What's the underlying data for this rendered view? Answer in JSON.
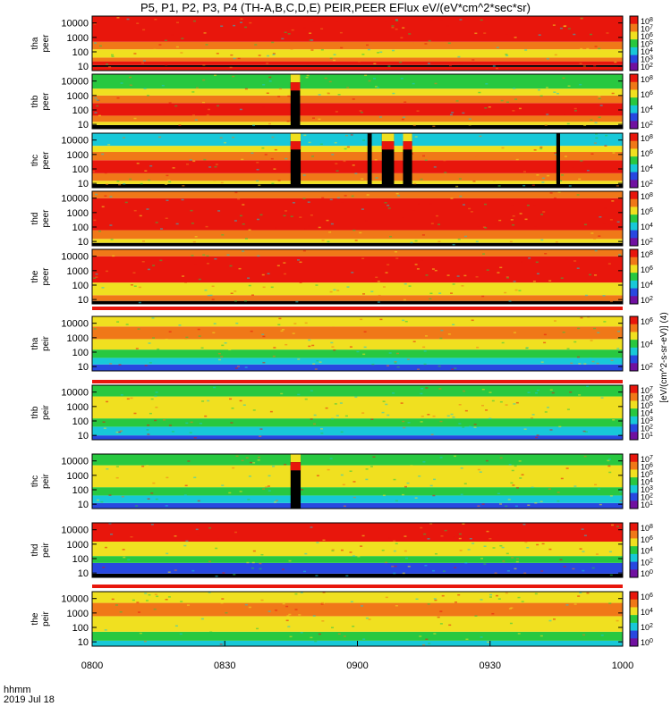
{
  "title": "P5, P1, P2, P3, P4 (TH-A,B,C,D,E) PEIR,PEER EFlux eV/(eV*cm^2*sec*sr)",
  "footer": {
    "label": "hhmm",
    "date": "2019 Jul 18"
  },
  "colorbar_axis_label": "[eV/(cm^2-s-sr-eV)] (4)",
  "x_ticks": [
    "0800",
    "0830",
    "0900",
    "0930",
    "1000"
  ],
  "colors": {
    "red": "#e8160c",
    "orange": "#f07818",
    "yellow": "#f0e020",
    "green": "#28c840",
    "cyan": "#18c8d8",
    "blue": "#2848e0",
    "black": "#000000"
  },
  "chart_data": [
    {
      "type": "heatmap",
      "probe": "tha",
      "label_top": "tha",
      "label_bottom": "peer",
      "yscale": "log",
      "ylim": [
        5,
        30000
      ],
      "y_ticks": [
        "10000",
        "1000",
        "100",
        "10"
      ],
      "cbar_ticks": [
        "10^8",
        "10^7",
        "10^6",
        "10^5",
        "10^4",
        "10^3",
        "10^2"
      ],
      "cbar_range": [
        100,
        100000000
      ],
      "x_range": [
        "0800",
        "1000"
      ],
      "bands": [
        {
          "from": 5,
          "to": 9,
          "level": "red"
        },
        {
          "from": 9,
          "to": 12,
          "level": "black"
        },
        {
          "from": 12,
          "to": 22,
          "level": "red"
        },
        {
          "from": 22,
          "to": 40,
          "level": "orange"
        },
        {
          "from": 40,
          "to": 150,
          "level": "yellow"
        },
        {
          "from": 150,
          "to": 500,
          "level": "orange"
        },
        {
          "from": 500,
          "to": 30000,
          "level": "red"
        }
      ],
      "gaps": []
    },
    {
      "type": "heatmap",
      "probe": "thb",
      "label_top": "thb",
      "label_bottom": "peer",
      "yscale": "log",
      "ylim": [
        5,
        30000
      ],
      "y_ticks": [
        "10000",
        "1000",
        "100",
        "10"
      ],
      "cbar_ticks": [
        "10^8",
        "10^6",
        "10^4",
        "10^2"
      ],
      "cbar_range": [
        100,
        100000000
      ],
      "x_range": [
        "0800",
        "1000"
      ],
      "bands": [
        {
          "from": 5,
          "to": 9,
          "level": "black"
        },
        {
          "from": 9,
          "to": 15,
          "level": "yellow"
        },
        {
          "from": 15,
          "to": 40,
          "level": "orange"
        },
        {
          "from": 40,
          "to": 300,
          "level": "red"
        },
        {
          "from": 300,
          "to": 1000,
          "level": "orange"
        },
        {
          "from": 1000,
          "to": 3000,
          "level": "yellow"
        },
        {
          "from": 3000,
          "to": 30000,
          "level": "green"
        }
      ],
      "gaps": [
        {
          "start": 0.374,
          "end": 0.392
        }
      ]
    },
    {
      "type": "heatmap",
      "probe": "thc",
      "label_top": "thc",
      "label_bottom": "peer",
      "yscale": "log",
      "ylim": [
        5,
        30000
      ],
      "y_ticks": [
        "10000",
        "1000",
        "100",
        "10"
      ],
      "cbar_ticks": [
        "10^8",
        "10^6",
        "10^4",
        "10^2"
      ],
      "cbar_range": [
        100,
        100000000
      ],
      "x_range": [
        "0800",
        "1000"
      ],
      "bands": [
        {
          "from": 5,
          "to": 9,
          "level": "black"
        },
        {
          "from": 9,
          "to": 15,
          "level": "yellow"
        },
        {
          "from": 15,
          "to": 50,
          "level": "orange"
        },
        {
          "from": 50,
          "to": 400,
          "level": "red"
        },
        {
          "from": 400,
          "to": 1500,
          "level": "orange"
        },
        {
          "from": 1500,
          "to": 4000,
          "level": "yellow"
        },
        {
          "from": 4000,
          "to": 30000,
          "level": "cyan"
        }
      ],
      "gaps": [
        {
          "start": 0.374,
          "end": 0.393
        },
        {
          "start": 0.519,
          "end": 0.527
        },
        {
          "start": 0.546,
          "end": 0.569
        },
        {
          "start": 0.586,
          "end": 0.603
        },
        {
          "start": 0.875,
          "end": 0.882
        }
      ]
    },
    {
      "type": "heatmap",
      "probe": "thd",
      "label_top": "thd",
      "label_bottom": "peer",
      "yscale": "log",
      "ylim": [
        5,
        30000
      ],
      "y_ticks": [
        "10000",
        "1000",
        "100",
        "10"
      ],
      "cbar_ticks": [
        "10^8",
        "10^6",
        "10^4",
        "10^2"
      ],
      "cbar_range": [
        100,
        100000000
      ],
      "x_range": [
        "0800",
        "1000"
      ],
      "bands": [
        {
          "from": 5,
          "to": 8,
          "level": "black"
        },
        {
          "from": 8,
          "to": 15,
          "level": "yellow"
        },
        {
          "from": 15,
          "to": 60,
          "level": "orange"
        },
        {
          "from": 60,
          "to": 10000,
          "level": "red"
        },
        {
          "from": 10000,
          "to": 30000,
          "level": "orange"
        }
      ],
      "gaps": []
    },
    {
      "type": "heatmap",
      "probe": "the",
      "label_top": "the",
      "label_bottom": "peer",
      "yscale": "log",
      "ylim": [
        5,
        30000
      ],
      "y_ticks": [
        "10000",
        "1000",
        "100",
        "10"
      ],
      "cbar_ticks": [
        "10^8",
        "10^6",
        "10^4",
        "10^2"
      ],
      "cbar_range": [
        100,
        100000000
      ],
      "x_range": [
        "0800",
        "1000"
      ],
      "bands": [
        {
          "from": 5,
          "to": 8,
          "level": "black"
        },
        {
          "from": 8,
          "to": 20,
          "level": "orange"
        },
        {
          "from": 20,
          "to": 150,
          "level": "yellow"
        },
        {
          "from": 150,
          "to": 10000,
          "level": "red"
        },
        {
          "from": 10000,
          "to": 30000,
          "level": "orange"
        }
      ],
      "gaps": []
    },
    {
      "type": "heatmap",
      "probe": "tha",
      "label_top": "tha",
      "label_bottom": "peir",
      "yscale": "log",
      "ylim": [
        5,
        30000
      ],
      "y_ticks": [
        "10000",
        "1000",
        "100",
        "10"
      ],
      "cbar_ticks": [
        "10^6",
        "10^4",
        "10^2"
      ],
      "cbar_range": [
        100,
        1000000
      ],
      "x_range": [
        "0800",
        "1000"
      ],
      "bands": [
        {
          "from": 5,
          "to": 14,
          "level": "blue"
        },
        {
          "from": 14,
          "to": 40,
          "level": "cyan"
        },
        {
          "from": 40,
          "to": 150,
          "level": "green"
        },
        {
          "from": 150,
          "to": 800,
          "level": "yellow"
        },
        {
          "from": 800,
          "to": 6000,
          "level": "orange"
        },
        {
          "from": 6000,
          "to": 30000,
          "level": "yellow"
        }
      ],
      "gaps": []
    },
    {
      "type": "heatmap",
      "probe": "thb",
      "label_top": "thb",
      "label_bottom": "peir",
      "yscale": "log",
      "ylim": [
        5,
        30000
      ],
      "y_ticks": [
        "10000",
        "1000",
        "100",
        "10"
      ],
      "cbar_ticks": [
        "10^7",
        "10^6",
        "10^5",
        "10^4",
        "10^3",
        "10^2",
        "10^1"
      ],
      "cbar_range": [
        10,
        10000000
      ],
      "x_range": [
        "0800",
        "1000"
      ],
      "bands": [
        {
          "from": 5,
          "to": 10,
          "level": "blue"
        },
        {
          "from": 10,
          "to": 40,
          "level": "cyan"
        },
        {
          "from": 40,
          "to": 150,
          "level": "green"
        },
        {
          "from": 150,
          "to": 5000,
          "level": "yellow"
        },
        {
          "from": 5000,
          "to": 30000,
          "level": "green"
        }
      ],
      "gaps": []
    },
    {
      "type": "heatmap",
      "probe": "thc",
      "label_top": "thc",
      "label_bottom": "peir",
      "yscale": "log",
      "ylim": [
        5,
        30000
      ],
      "y_ticks": [
        "10000",
        "1000",
        "100",
        "10"
      ],
      "cbar_ticks": [
        "10^7",
        "10^6",
        "10^5",
        "10^4",
        "10^3",
        "10^2",
        "10^1"
      ],
      "cbar_range": [
        10,
        10000000
      ],
      "x_range": [
        "0800",
        "1000"
      ],
      "bands": [
        {
          "from": 5,
          "to": 12,
          "level": "blue"
        },
        {
          "from": 12,
          "to": 40,
          "level": "cyan"
        },
        {
          "from": 40,
          "to": 150,
          "level": "green"
        },
        {
          "from": 150,
          "to": 5000,
          "level": "yellow"
        },
        {
          "from": 5000,
          "to": 30000,
          "level": "green"
        }
      ],
      "gaps": [
        {
          "start": 0.374,
          "end": 0.393
        }
      ]
    },
    {
      "type": "heatmap",
      "probe": "thd",
      "label_top": "thd",
      "label_bottom": "peir",
      "yscale": "log",
      "ylim": [
        5,
        30000
      ],
      "y_ticks": [
        "10000",
        "1000",
        "100",
        "10"
      ],
      "cbar_ticks": [
        "10^8",
        "10^6",
        "10^4",
        "10^2",
        "10^0"
      ],
      "cbar_range": [
        1,
        100000000
      ],
      "x_range": [
        "0800",
        "1000"
      ],
      "bands": [
        {
          "from": 5,
          "to": 9,
          "level": "black"
        },
        {
          "from": 9,
          "to": 50,
          "level": "blue"
        },
        {
          "from": 50,
          "to": 150,
          "level": "green"
        },
        {
          "from": 150,
          "to": 1500,
          "level": "yellow"
        },
        {
          "from": 1500,
          "to": 30000,
          "level": "red"
        }
      ],
      "gaps": []
    },
    {
      "type": "heatmap",
      "probe": "the",
      "label_top": "the",
      "label_bottom": "peir",
      "yscale": "log",
      "ylim": [
        5,
        30000
      ],
      "y_ticks": [
        "10000",
        "1000",
        "100",
        "10"
      ],
      "cbar_ticks": [
        "10^6",
        "10^4",
        "10^2",
        "10^0"
      ],
      "cbar_range": [
        1,
        1000000
      ],
      "x_range": [
        "0800",
        "1000"
      ],
      "bands": [
        {
          "from": 5,
          "to": 12,
          "level": "cyan"
        },
        {
          "from": 12,
          "to": 50,
          "level": "green"
        },
        {
          "from": 50,
          "to": 600,
          "level": "yellow"
        },
        {
          "from": 600,
          "to": 5000,
          "level": "orange"
        },
        {
          "from": 5000,
          "to": 30000,
          "level": "yellow"
        }
      ],
      "gaps": []
    }
  ]
}
